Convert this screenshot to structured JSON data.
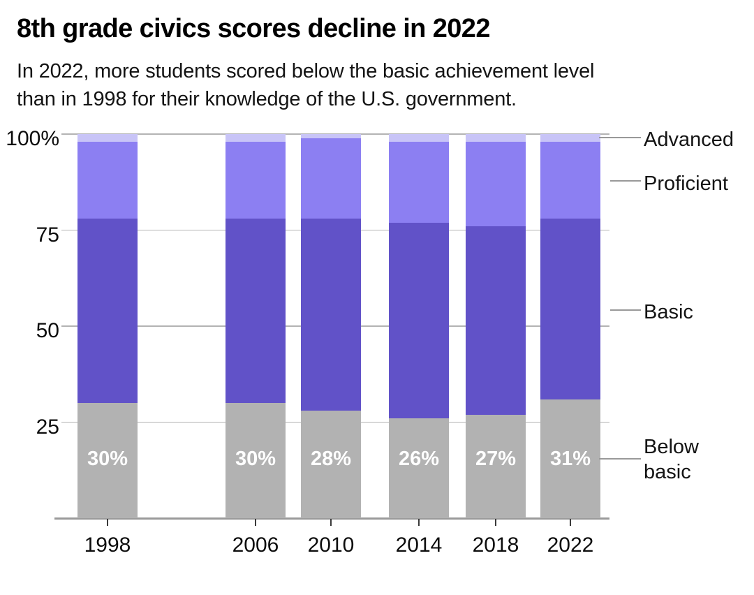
{
  "header": {
    "title": "8th grade civics scores decline in 2022",
    "subtitle_lines": [
      "In 2022, more students scored below the basic achievement level",
      "than in 1998 for their knowledge of the U.S. government."
    ]
  },
  "chart_data": {
    "type": "bar",
    "stacked": true,
    "title": "8th grade civics scores decline in 2022",
    "subtitle": "In 2022, more students scored below the basic achievement level than in 1998 for their knowledge of the U.S. government.",
    "categories": [
      "1998",
      "2006",
      "2010",
      "2014",
      "2018",
      "2022"
    ],
    "series": [
      {
        "name": "Below basic",
        "color": "#b2b2b2",
        "values": [
          30,
          30,
          28,
          26,
          27,
          31
        ]
      },
      {
        "name": "Basic",
        "color": "#6152c8",
        "values": [
          48,
          48,
          50,
          51,
          49,
          47
        ]
      },
      {
        "name": "Proficient",
        "color": "#8c7ff2",
        "values": [
          20,
          20,
          21,
          21,
          22,
          20
        ]
      },
      {
        "name": "Advanced",
        "color": "#c8c4f7",
        "values": [
          2,
          2,
          1,
          2,
          2,
          2
        ]
      }
    ],
    "bar_labels": [
      "30%",
      "30%",
      "28%",
      "26%",
      "27%",
      "31%"
    ],
    "y_ticks": [
      {
        "value": 100,
        "label": "100%"
      },
      {
        "value": 75,
        "label": "75"
      },
      {
        "value": 50,
        "label": "50"
      },
      {
        "value": 25,
        "label": "25"
      }
    ],
    "ylim": [
      0,
      100
    ],
    "xlabel": "",
    "ylabel": "",
    "grid": true,
    "legend_position": "right",
    "legend_entries": [
      "Advanced",
      "Proficient",
      "Basic",
      "Below basic"
    ],
    "colors": {
      "gridline": "#b3b3b3",
      "axis_line": "#9a9a9a",
      "tick": "#3a3a3a",
      "leader_line": "#999999",
      "bar_value_text": "#ffffff",
      "text": "#0d0d0d"
    }
  }
}
